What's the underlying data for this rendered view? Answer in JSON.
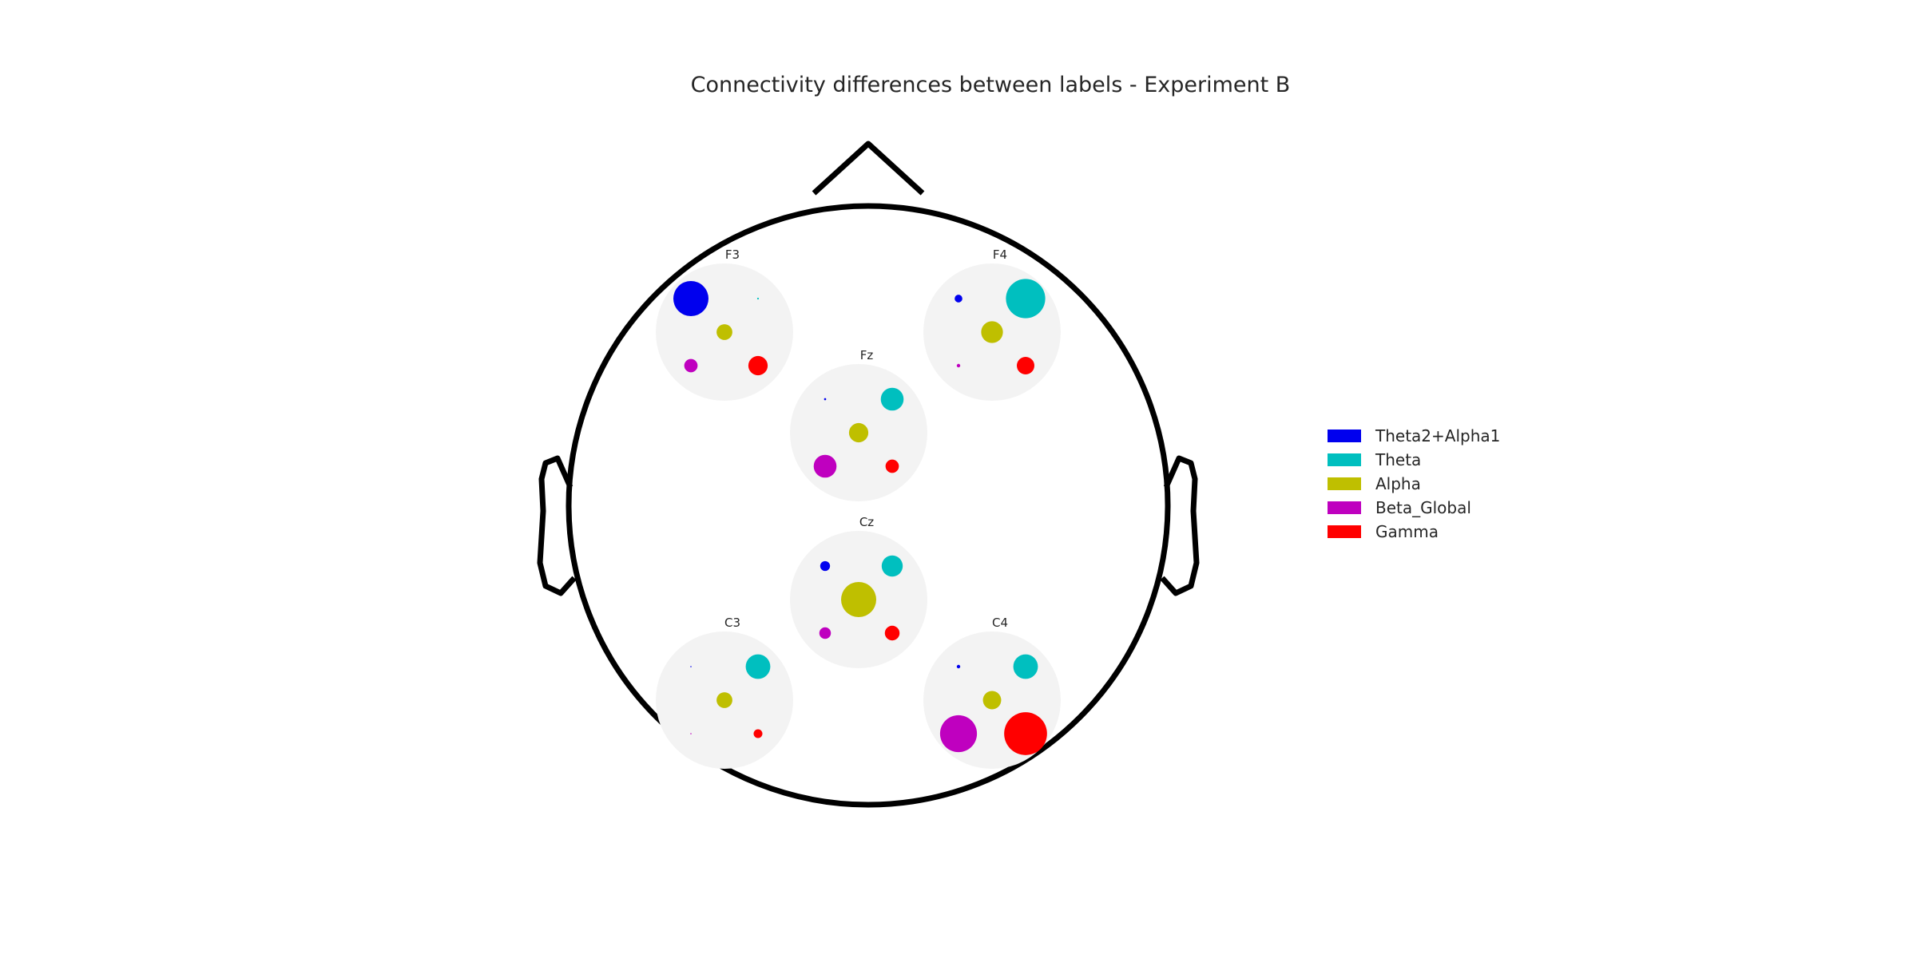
{
  "chart_data": {
    "type": "scatter",
    "title": "Connectivity differences between labels - Experiment B",
    "series": [
      {
        "name": "Theta2+Alpha1",
        "color": "#0000ee"
      },
      {
        "name": "Theta",
        "color": "#00bfbf"
      },
      {
        "name": "Alpha",
        "color": "#bfbf00"
      },
      {
        "name": "Beta_Global",
        "color": "#bf00bf"
      },
      {
        "name": "Gamma",
        "color": "#ff0000"
      }
    ],
    "electrodes": [
      {
        "name": "F3",
        "values": [
          1.0,
          0.05,
          0.45,
          0.38,
          0.55
        ]
      },
      {
        "name": "F4",
        "values": [
          0.22,
          1.12,
          0.62,
          0.1,
          0.5
        ]
      },
      {
        "name": "Fz",
        "values": [
          0.06,
          0.65,
          0.55,
          0.65,
          0.38
        ]
      },
      {
        "name": "Cz",
        "values": [
          0.28,
          0.6,
          1.0,
          0.33,
          0.42
        ]
      },
      {
        "name": "C3",
        "values": [
          0.02,
          0.7,
          0.45,
          0.02,
          0.25
        ]
      },
      {
        "name": "C4",
        "values": [
          0.1,
          0.7,
          0.52,
          1.05,
          1.22
        ]
      }
    ],
    "legend_position": "right",
    "grid": false
  }
}
